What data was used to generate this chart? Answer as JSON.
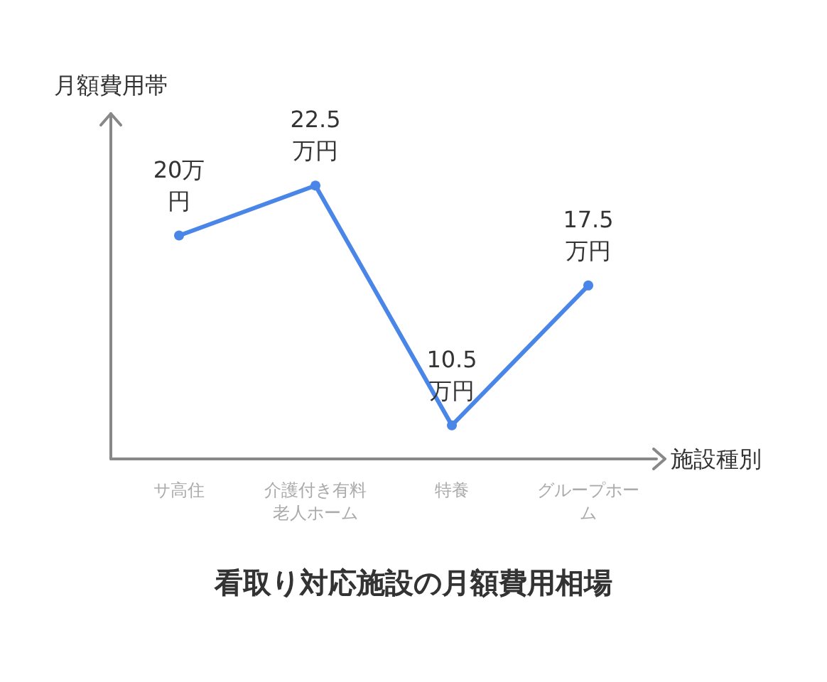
{
  "chart_data": {
    "type": "line",
    "title": "看取り対応施設の月額費用相場",
    "xlabel": "施設種別",
    "ylabel": "月額費用帯",
    "categories": [
      "サ高住",
      "介護付き有料老人ホーム",
      "特養",
      "グループホーム"
    ],
    "series": [
      {
        "color": "#4a86e8",
        "values": [
          20,
          22.5,
          10.5,
          17.5
        ],
        "value_labels": [
          "20万円",
          "22.5万円",
          "10.5万円",
          "17.5万円"
        ]
      }
    ],
    "marker": "circle",
    "line_style": "solid",
    "grid": false
  }
}
